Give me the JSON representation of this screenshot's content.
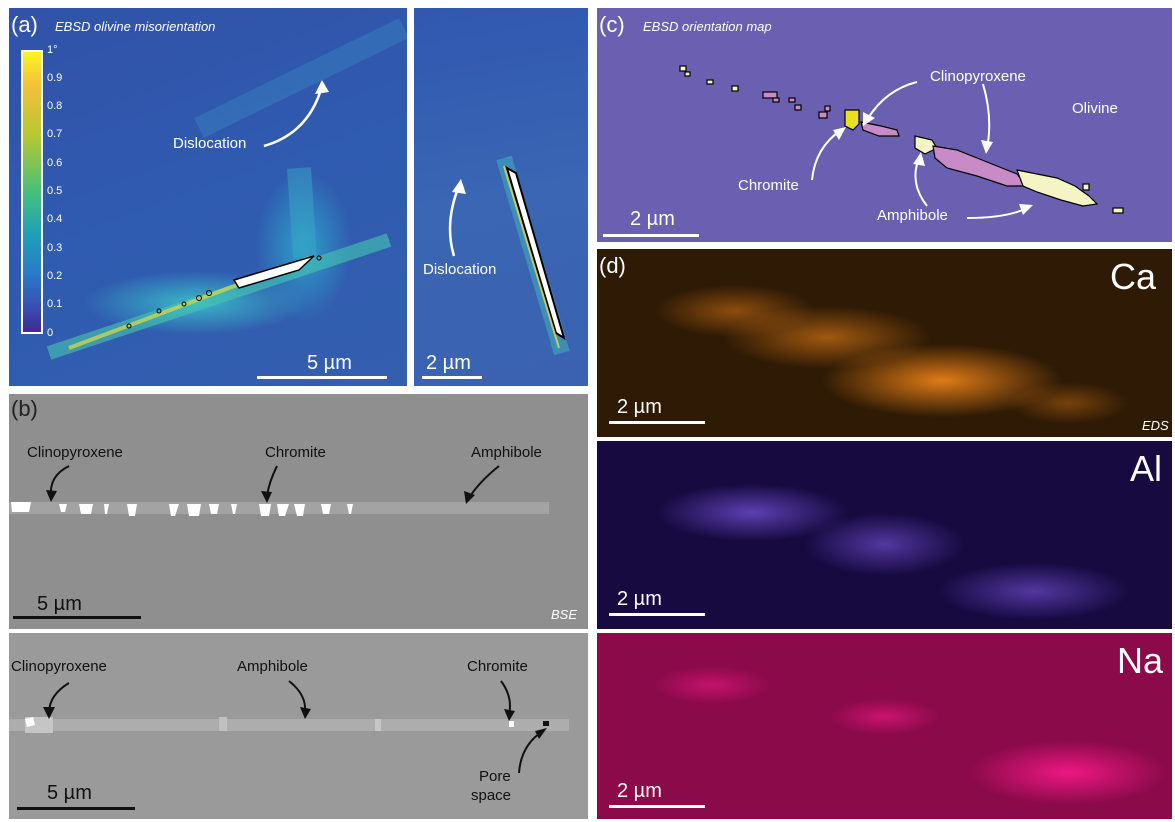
{
  "panel_a": {
    "label": "(a)",
    "title": "EBSD olivine misorientation",
    "colorbar_ticks": [
      "1°",
      "0.9",
      "0.8",
      "0.7",
      "0.6",
      "0.5",
      "0.4",
      "0.3",
      "0.2",
      "0.1",
      "0"
    ],
    "dislocation_1": "Dislocation",
    "dislocation_2": "Dislocation",
    "scale_left": "5 µm",
    "scale_right": "2 µm"
  },
  "panel_b": {
    "label": "(b)",
    "top": {
      "cpx": "Clinopyroxene",
      "chromite": "Chromite",
      "amphibole": "Amphibole",
      "scale": "5 µm",
      "tag": "BSE"
    },
    "bottom": {
      "cpx": "Clinopyroxene",
      "amphibole": "Amphibole",
      "chromite": "Chromite",
      "pore_1": "Pore",
      "pore_2": "space",
      "scale": "5 µm"
    }
  },
  "panel_c": {
    "label": "(c)",
    "title": "EBSD orientation map",
    "cpx": "Clinopyroxene",
    "olivine": "Olivine",
    "chromite": "Chromite",
    "amphibole": "Amphibole",
    "scale": "2 µm"
  },
  "panel_d": {
    "label": "(d)",
    "ca": "Ca",
    "al": "Al",
    "na": "Na",
    "eds": "EDS",
    "scale_ca": "2 µm",
    "scale_al": "2 µm",
    "scale_na": "2 µm"
  },
  "colors": {
    "olivine_map": "#6a5fb0",
    "cpx": "#c98bc8",
    "amphibole": "#f4f4c4",
    "chromite": "#e8e020",
    "ca_bg": "#2e1a05",
    "ca_signal": "#ff8c1a",
    "al_bg": "#160a40",
    "al_signal": "#7a56e0",
    "na_bg": "#8a0a4a",
    "na_signal": "#ff1a8c"
  }
}
